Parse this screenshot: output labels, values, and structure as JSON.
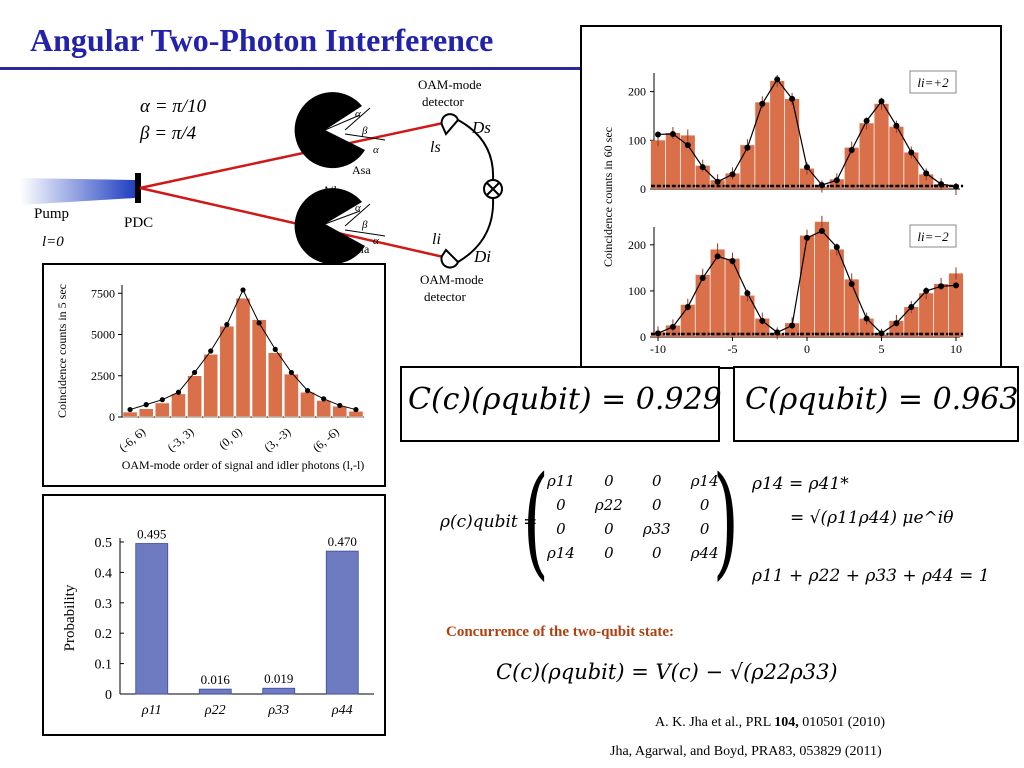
{
  "title": "Angular Two-Photon Interference",
  "setup": {
    "alpha": "α = π/10",
    "beta": "β = π/4",
    "pump": "Pump",
    "pump_l": "l=0",
    "pdc": "PDC",
    "det_top_label1": "OAM-mode",
    "det_top_label2": "detector",
    "det_bot_label1": "OAM-mode",
    "det_bot_label2": "detector",
    "ds": "Ds",
    "di": "Di",
    "ls": "ls",
    "li": "li",
    "asb": "Asb",
    "asa": "Asa",
    "aib": "Aib",
    "aia": "Aia",
    "alpha_sym": "α",
    "beta_sym": "β"
  },
  "chart_data": [
    {
      "type": "bar",
      "id": "oam_5sec",
      "xlabel": "OAM-mode order of signal and idler photons (l,-l)",
      "ylabel": "Coincidence counts in 5 sec",
      "ylim": [
        0,
        8000
      ],
      "yticks": [
        0,
        2500,
        5000,
        7500
      ],
      "xticklabels": [
        "(-6, 6)",
        "(-3, 3)",
        "(0, 0)",
        "(3, -3)",
        "(6, -6)"
      ],
      "xtick_positions": [
        -6,
        -3,
        0,
        3,
        6
      ],
      "categories": [
        -7,
        -6,
        -5,
        -4,
        -3,
        -2,
        -1,
        0,
        1,
        2,
        3,
        4,
        5,
        6,
        7
      ],
      "values": [
        300,
        500,
        850,
        1400,
        2500,
        3800,
        5500,
        7200,
        5900,
        3900,
        2600,
        1500,
        1000,
        650,
        350
      ],
      "theory": [
        450,
        750,
        1050,
        1500,
        2700,
        4000,
        5600,
        7700,
        5700,
        4100,
        2700,
        1600,
        1100,
        700,
        450
      ]
    },
    {
      "type": "bar",
      "id": "li_plus2",
      "panel_label": "li=+2",
      "ylabel": "Coincidence counts in 60 sec",
      "ylim": [
        0,
        230
      ],
      "yticks": [
        0,
        100,
        200
      ],
      "x": [
        -10,
        -9,
        -8,
        -7,
        -6,
        -5,
        -4,
        -3,
        -2,
        -1,
        0,
        1,
        2,
        3,
        4,
        5,
        6,
        7,
        8,
        9,
        10
      ],
      "values": [
        100,
        115,
        110,
        48,
        18,
        32,
        90,
        178,
        222,
        185,
        42,
        5,
        20,
        85,
        135,
        175,
        128,
        75,
        30,
        10,
        0
      ],
      "theory": [
        112,
        113,
        90,
        45,
        15,
        30,
        85,
        175,
        225,
        185,
        45,
        8,
        18,
        80,
        140,
        180,
        130,
        75,
        32,
        10,
        5
      ]
    },
    {
      "type": "bar",
      "id": "li_minus2",
      "panel_label": "li=−2",
      "ylim": [
        0,
        230
      ],
      "yticks": [
        0,
        100,
        200
      ],
      "x": [
        -10,
        -9,
        -8,
        -7,
        -6,
        -5,
        -4,
        -3,
        -2,
        -1,
        0,
        1,
        2,
        3,
        4,
        5,
        6,
        7,
        8,
        9,
        10
      ],
      "values": [
        10,
        25,
        70,
        135,
        190,
        170,
        90,
        40,
        8,
        30,
        220,
        250,
        190,
        125,
        40,
        5,
        35,
        65,
        95,
        115,
        138
      ],
      "theory": [
        8,
        22,
        65,
        128,
        175,
        165,
        95,
        35,
        10,
        25,
        215,
        230,
        195,
        115,
        40,
        8,
        30,
        65,
        100,
        110,
        112
      ],
      "xticks": [
        -10,
        -5,
        0,
        5,
        10
      ]
    },
    {
      "type": "bar",
      "id": "probability",
      "ylabel": "Probability",
      "ylim": [
        0,
        0.5
      ],
      "yticks": [
        "0",
        "0.1",
        "0.2",
        "0.3",
        "0.4",
        "0.5"
      ],
      "categories": [
        "ρ11",
        "ρ22",
        "ρ33",
        "ρ44"
      ],
      "values": [
        0.495,
        0.016,
        0.019,
        0.47
      ],
      "labels": [
        "0.495",
        "0.016",
        "0.019",
        "0.470"
      ]
    }
  ],
  "concurrence_left": "C(c)(ρqubit) = 0.929",
  "concurrence_right": "C(ρqubit) = 0.963",
  "matrix_lhs": "ρ(c)qubit =",
  "matrix": [
    [
      "ρ11",
      "0",
      "0",
      "ρ14"
    ],
    [
      "0",
      "ρ22",
      "0",
      "0"
    ],
    [
      "0",
      "0",
      "ρ33",
      "0"
    ],
    [
      "ρ14",
      "0",
      "0",
      "ρ44"
    ]
  ],
  "rho14_line1": "ρ14 = ρ41*",
  "rho14_line2": "= √(ρ11ρ44) μe^iθ",
  "sum_eq": "ρ11 + ρ22 + ρ33 + ρ44 = 1",
  "conc_label": "Concurrence of the two-qubit state:",
  "conc_formula": "C(c)(ρqubit) = V(c) − √(ρ22ρ33)",
  "ref1_prefix": "A. K. Jha et al., PRL ",
  "ref1_vol": "104,",
  "ref1_suffix": " 010501 (2010)",
  "ref2": "Jha, Agarwal, and Boyd, PRA83, 053829 (2011)",
  "colors": {
    "bar": "#d9704a",
    "bar_edge": "#8a3a20",
    "prob_bar": "#6f7bc0",
    "title": "#2222aa",
    "beam": "#d01818"
  }
}
